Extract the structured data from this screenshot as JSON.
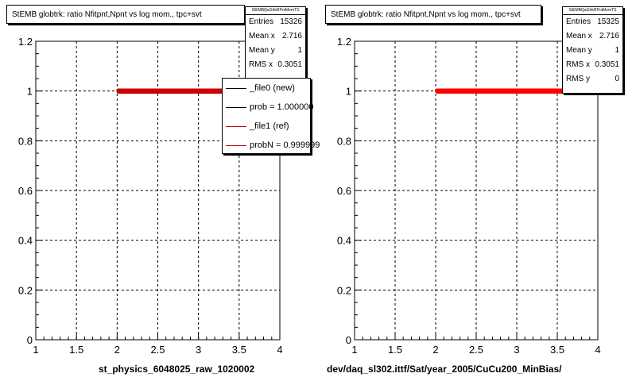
{
  "panels": [
    {
      "title": "StEMB globtrk: ratio Nfitpnt,Npnt vs log mom., tpc+svt",
      "stats": {
        "name": "StEMBQaGlrkRPntMomTS",
        "rows": [
          {
            "label": "Entries",
            "value": "15326"
          },
          {
            "label": "Mean x",
            "value": "2.716"
          },
          {
            "label": "Mean y",
            "value": "1"
          },
          {
            "label": "RMS x",
            "value": "0.3051"
          }
        ]
      },
      "legend": [
        {
          "label": "_file0 (new)",
          "color": "#000000"
        },
        {
          "label": "prob = 1.000000",
          "color": "#000000"
        },
        {
          "label": "_file1 (ref)",
          "color": "#cc0000"
        },
        {
          "label": "probN = 0.999999",
          "color": "#cc0000"
        }
      ],
      "footer": "st_physics_6048025_raw_1020002"
    },
    {
      "title": "StEMB globtrk: ratio Nfitpnt,Npnt vs log mom., tpc+svt",
      "stats": {
        "name": "StEMBQaGlrkRPntMomTS",
        "rows": [
          {
            "label": "Entries",
            "value": "15325"
          },
          {
            "label": "Mean x",
            "value": "2.716"
          },
          {
            "label": "Mean y",
            "value": "1"
          },
          {
            "label": "RMS x",
            "value": "0.3051"
          },
          {
            "label": "RMS y",
            "value": "0"
          }
        ]
      },
      "footer": "dev/daq_sl302.ittf/Sat/year_2005/CuCu200_MinBias/"
    }
  ],
  "chart_data": [
    {
      "type": "scatter",
      "title": "StEMB globtrk: ratio Nfitpnt,Npnt vs log mom., tpc+svt",
      "xlim": [
        1,
        4
      ],
      "ylim": [
        0,
        1.2
      ],
      "xticks": [
        "1",
        "1.5",
        "2",
        "2.5",
        "3",
        "3.5",
        "4"
      ],
      "yticks": [
        "0",
        "0.2",
        "0.4",
        "0.6",
        "0.8",
        "1",
        "1.2"
      ],
      "grid": true,
      "xlabel": "st_physics_6048025_raw_1020002",
      "series": [
        {
          "name": "_file0 (new)",
          "color": "#000000",
          "x_range": [
            2.02,
            3.55
          ],
          "y": 1
        },
        {
          "name": "_file1 (ref)",
          "color": "#cc0000",
          "x_range": [
            2.02,
            3.55
          ],
          "y": 1
        }
      ]
    },
    {
      "type": "scatter",
      "title": "StEMB globtrk: ratio Nfitpnt,Npnt vs log mom., tpc+svt",
      "xlim": [
        1,
        4
      ],
      "ylim": [
        0,
        1.2
      ],
      "xticks": [
        "1",
        "1.5",
        "2",
        "2.5",
        "3",
        "3.5",
        "4"
      ],
      "yticks": [
        "0",
        "0.2",
        "0.4",
        "0.6",
        "0.8",
        "1",
        "1.2"
      ],
      "grid": true,
      "xlabel": "dev/daq_sl302.ittf/Sat/year_2005/CuCu200_MinBias/",
      "series": [
        {
          "color": "#ff0000",
          "x_range": [
            2.02,
            3.55
          ],
          "y": 1
        }
      ]
    }
  ]
}
